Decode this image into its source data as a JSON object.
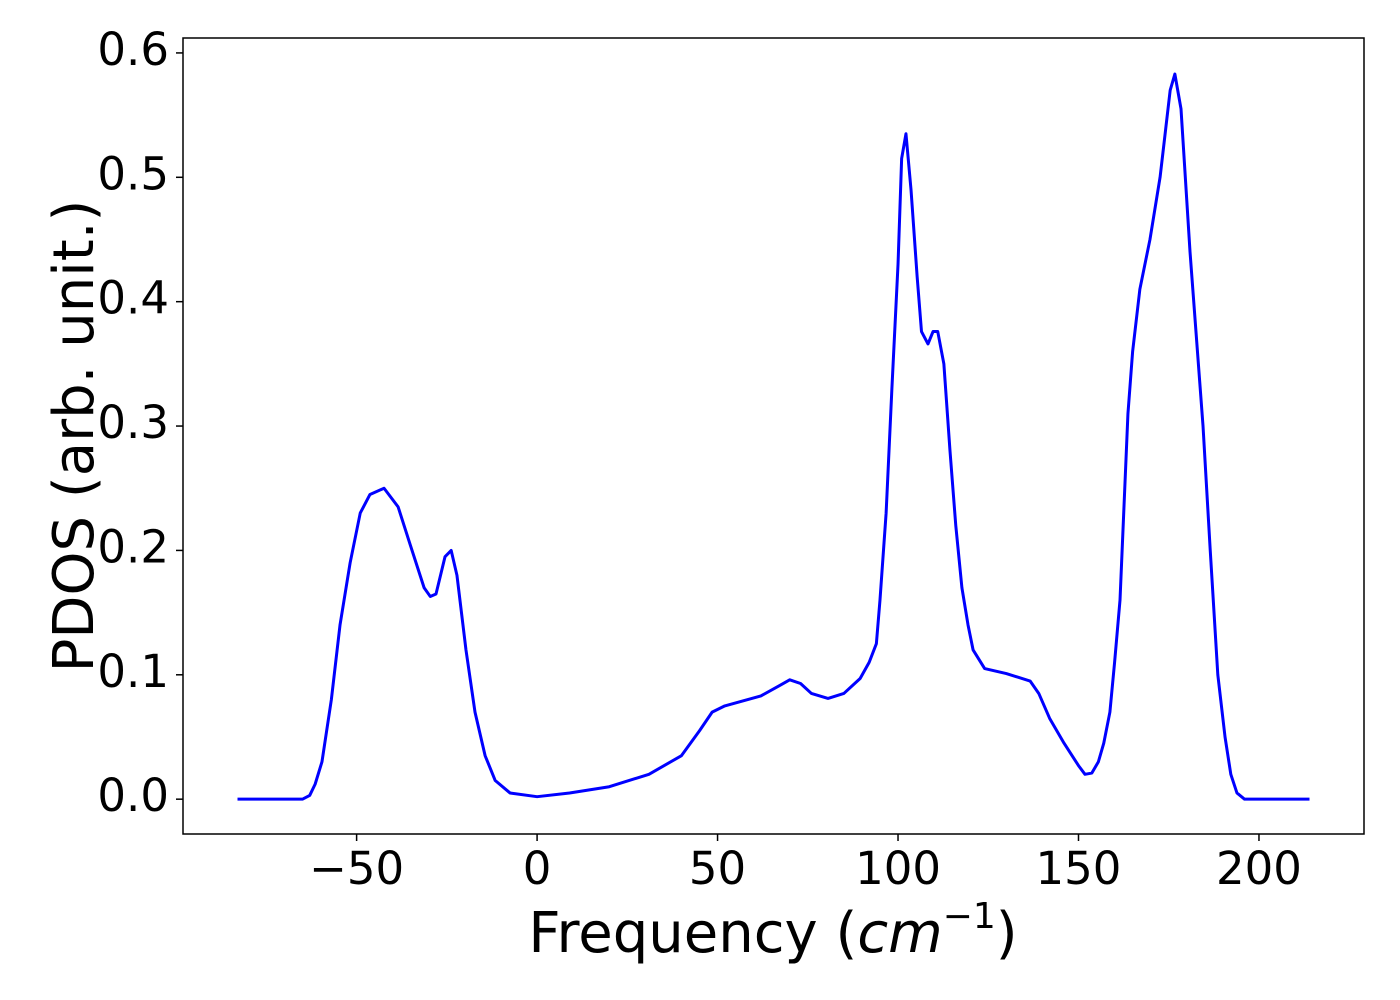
{
  "chart_data": {
    "type": "line",
    "ylabel": "PDOS (arb. unit.)",
    "xlabel_parts": [
      "Frequency (",
      "cm",
      "−1",
      ")"
    ],
    "xlim": [
      -98.1,
      229.1
    ],
    "ylim": [
      -0.028,
      0.612
    ],
    "xticks": [
      {
        "value": -50,
        "label": "−50"
      },
      0,
      50,
      100,
      150,
      200
    ],
    "yticks": [
      {
        "value": 0,
        "label": "0.0"
      },
      0.1,
      0.2,
      0.3,
      0.4,
      0.5,
      0.6
    ],
    "x": [
      -83,
      -65,
      -63,
      -61.5,
      -59.6,
      -57,
      -54.6,
      -51.8,
      -49,
      -46.3,
      -42.4,
      -38.5,
      -35.2,
      -31.3,
      -29.6,
      -28,
      -25.5,
      -23.8,
      -22.2,
      -19.7,
      -17.2,
      -14.4,
      -11.6,
      -7.5,
      0,
      9,
      20,
      31,
      40,
      45,
      48.5,
      52,
      62,
      67,
      70,
      73,
      76,
      80.6,
      85,
      89.5,
      92,
      94,
      95,
      96.7,
      98.3,
      100,
      101,
      102.2,
      103.6,
      105.3,
      106.5,
      108.3,
      109.7,
      111,
      112.7,
      114.4,
      116,
      117.7,
      119.4,
      120.8,
      124,
      130,
      136.6,
      139,
      142,
      146,
      150,
      151.8,
      153.7,
      155.5,
      157,
      158.7,
      160,
      161.5,
      163.7,
      165,
      167,
      169.8,
      172.6,
      174,
      175.4,
      176.7,
      178.4,
      180.9,
      184.5,
      186.5,
      188.6,
      190.6,
      192.2,
      193.9,
      196,
      214
    ],
    "series": [
      {
        "color": "#0000ff",
        "values": [
          0,
          0,
          0.003,
          0.012,
          0.03,
          0.08,
          0.14,
          0.19,
          0.23,
          0.245,
          0.25,
          0.235,
          0.205,
          0.17,
          0.163,
          0.165,
          0.195,
          0.2,
          0.18,
          0.12,
          0.07,
          0.035,
          0.015,
          0.005,
          0.002,
          0.005,
          0.01,
          0.02,
          0.035,
          0.055,
          0.07,
          0.075,
          0.083,
          0.091,
          0.096,
          0.093,
          0.085,
          0.081,
          0.085,
          0.097,
          0.11,
          0.125,
          0.16,
          0.23,
          0.33,
          0.43,
          0.515,
          0.535,
          0.49,
          0.42,
          0.376,
          0.366,
          0.376,
          0.376,
          0.35,
          0.28,
          0.22,
          0.17,
          0.14,
          0.12,
          0.105,
          0.101,
          0.095,
          0.085,
          0.065,
          0.045,
          0.027,
          0.02,
          0.021,
          0.03,
          0.045,
          0.07,
          0.11,
          0.16,
          0.31,
          0.36,
          0.41,
          0.45,
          0.5,
          0.535,
          0.57,
          0.583,
          0.555,
          0.44,
          0.3,
          0.2,
          0.1,
          0.05,
          0.02,
          0.005,
          0,
          0
        ]
      }
    ]
  }
}
